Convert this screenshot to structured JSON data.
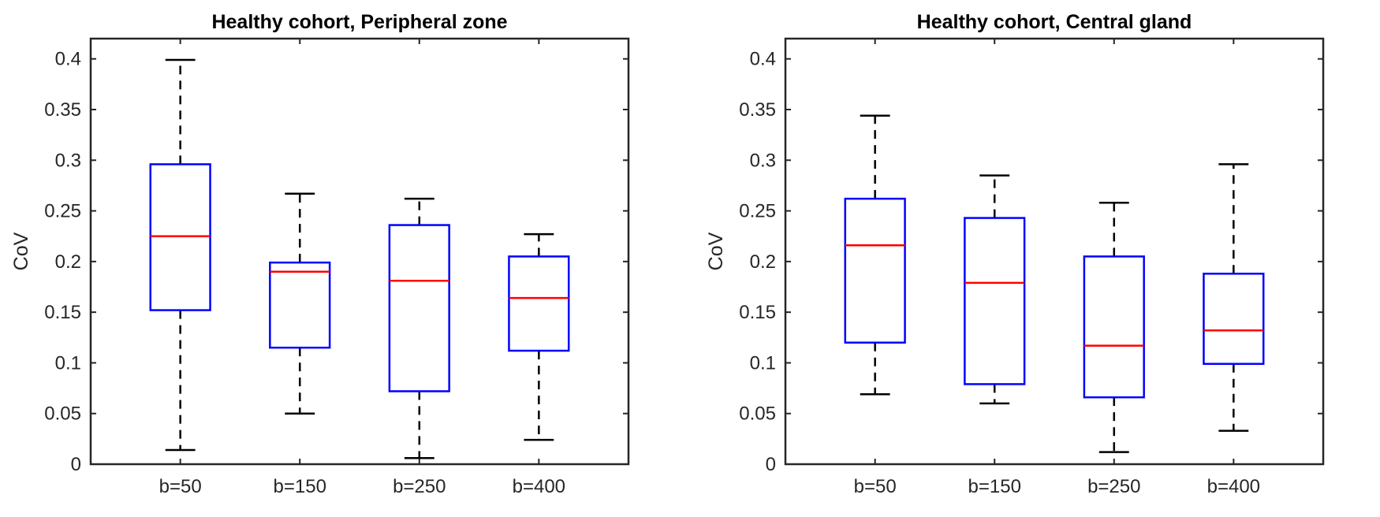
{
  "colors": {
    "box": "#0000ff",
    "median": "#ff0000",
    "whisker": "#000000",
    "axis": "#262626"
  },
  "chart_data": [
    {
      "type": "box",
      "title": "Healthy cohort, Peripheral zone",
      "xlabel": "",
      "ylabel": "CoV",
      "ylim": [
        0,
        0.42
      ],
      "yticks": [
        0,
        0.05,
        0.1,
        0.15,
        0.2,
        0.25,
        0.3,
        0.35,
        0.4
      ],
      "ytick_labels": [
        "0",
        "0.05",
        "0.1",
        "0.15",
        "0.2",
        "0.25",
        "0.3",
        "0.35",
        "0.4"
      ],
      "categories": [
        "b=50",
        "b=150",
        "b=250",
        "b=400"
      ],
      "boxes": [
        {
          "min": 0.014,
          "q1": 0.152,
          "median": 0.225,
          "q3": 0.296,
          "max": 0.399
        },
        {
          "min": 0.05,
          "q1": 0.115,
          "median": 0.19,
          "q3": 0.199,
          "max": 0.267
        },
        {
          "min": 0.006,
          "q1": 0.072,
          "median": 0.181,
          "q3": 0.236,
          "max": 0.262
        },
        {
          "min": 0.024,
          "q1": 0.112,
          "median": 0.164,
          "q3": 0.205,
          "max": 0.227
        }
      ]
    },
    {
      "type": "box",
      "title": "Healthy cohort, Central gland",
      "xlabel": "",
      "ylabel": "CoV",
      "ylim": [
        0,
        0.42
      ],
      "yticks": [
        0,
        0.05,
        0.1,
        0.15,
        0.2,
        0.25,
        0.3,
        0.35,
        0.4
      ],
      "ytick_labels": [
        "0",
        "0.05",
        "0.1",
        "0.15",
        "0.2",
        "0.25",
        "0.3",
        "0.35",
        "0.4"
      ],
      "categories": [
        "b=50",
        "b=150",
        "b=250",
        "b=400"
      ],
      "boxes": [
        {
          "min": 0.069,
          "q1": 0.12,
          "median": 0.216,
          "q3": 0.262,
          "max": 0.344
        },
        {
          "min": 0.06,
          "q1": 0.079,
          "median": 0.179,
          "q3": 0.243,
          "max": 0.285
        },
        {
          "min": 0.012,
          "q1": 0.066,
          "median": 0.117,
          "q3": 0.205,
          "max": 0.258
        },
        {
          "min": 0.033,
          "q1": 0.099,
          "median": 0.132,
          "q3": 0.188,
          "max": 0.296
        }
      ]
    }
  ]
}
